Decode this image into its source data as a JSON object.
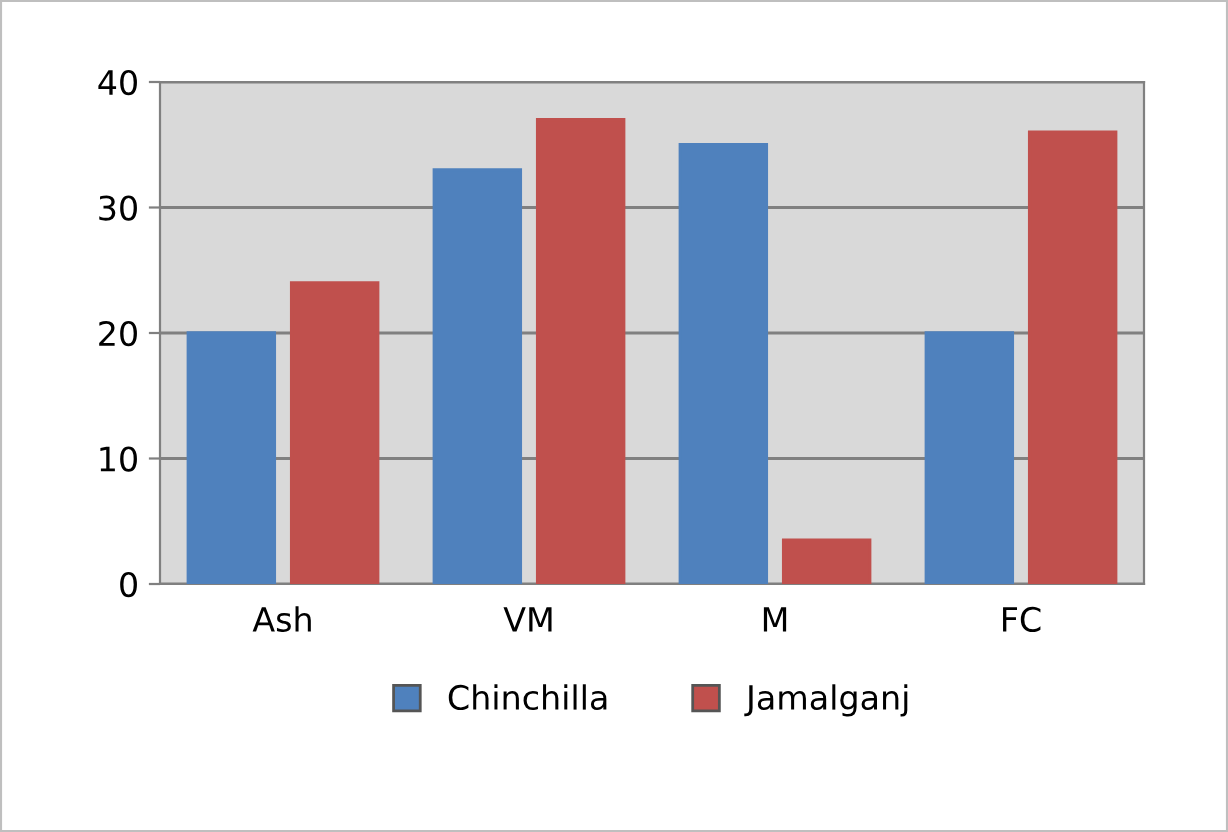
{
  "chart_data": {
    "type": "bar",
    "categories": [
      "Ash",
      "VM",
      "M",
      "FC"
    ],
    "series": [
      {
        "name": "Chinchilla",
        "color": "#4f81bd",
        "values": [
          20,
          33,
          35,
          20
        ]
      },
      {
        "name": "Jamalganj",
        "color": "#c0504d",
        "values": [
          24,
          37,
          3.5,
          36
        ]
      }
    ],
    "ylim": [
      0,
      40
    ],
    "yticks": [
      0,
      10,
      20,
      30,
      40
    ],
    "grid": "y",
    "legend": "bottom"
  }
}
